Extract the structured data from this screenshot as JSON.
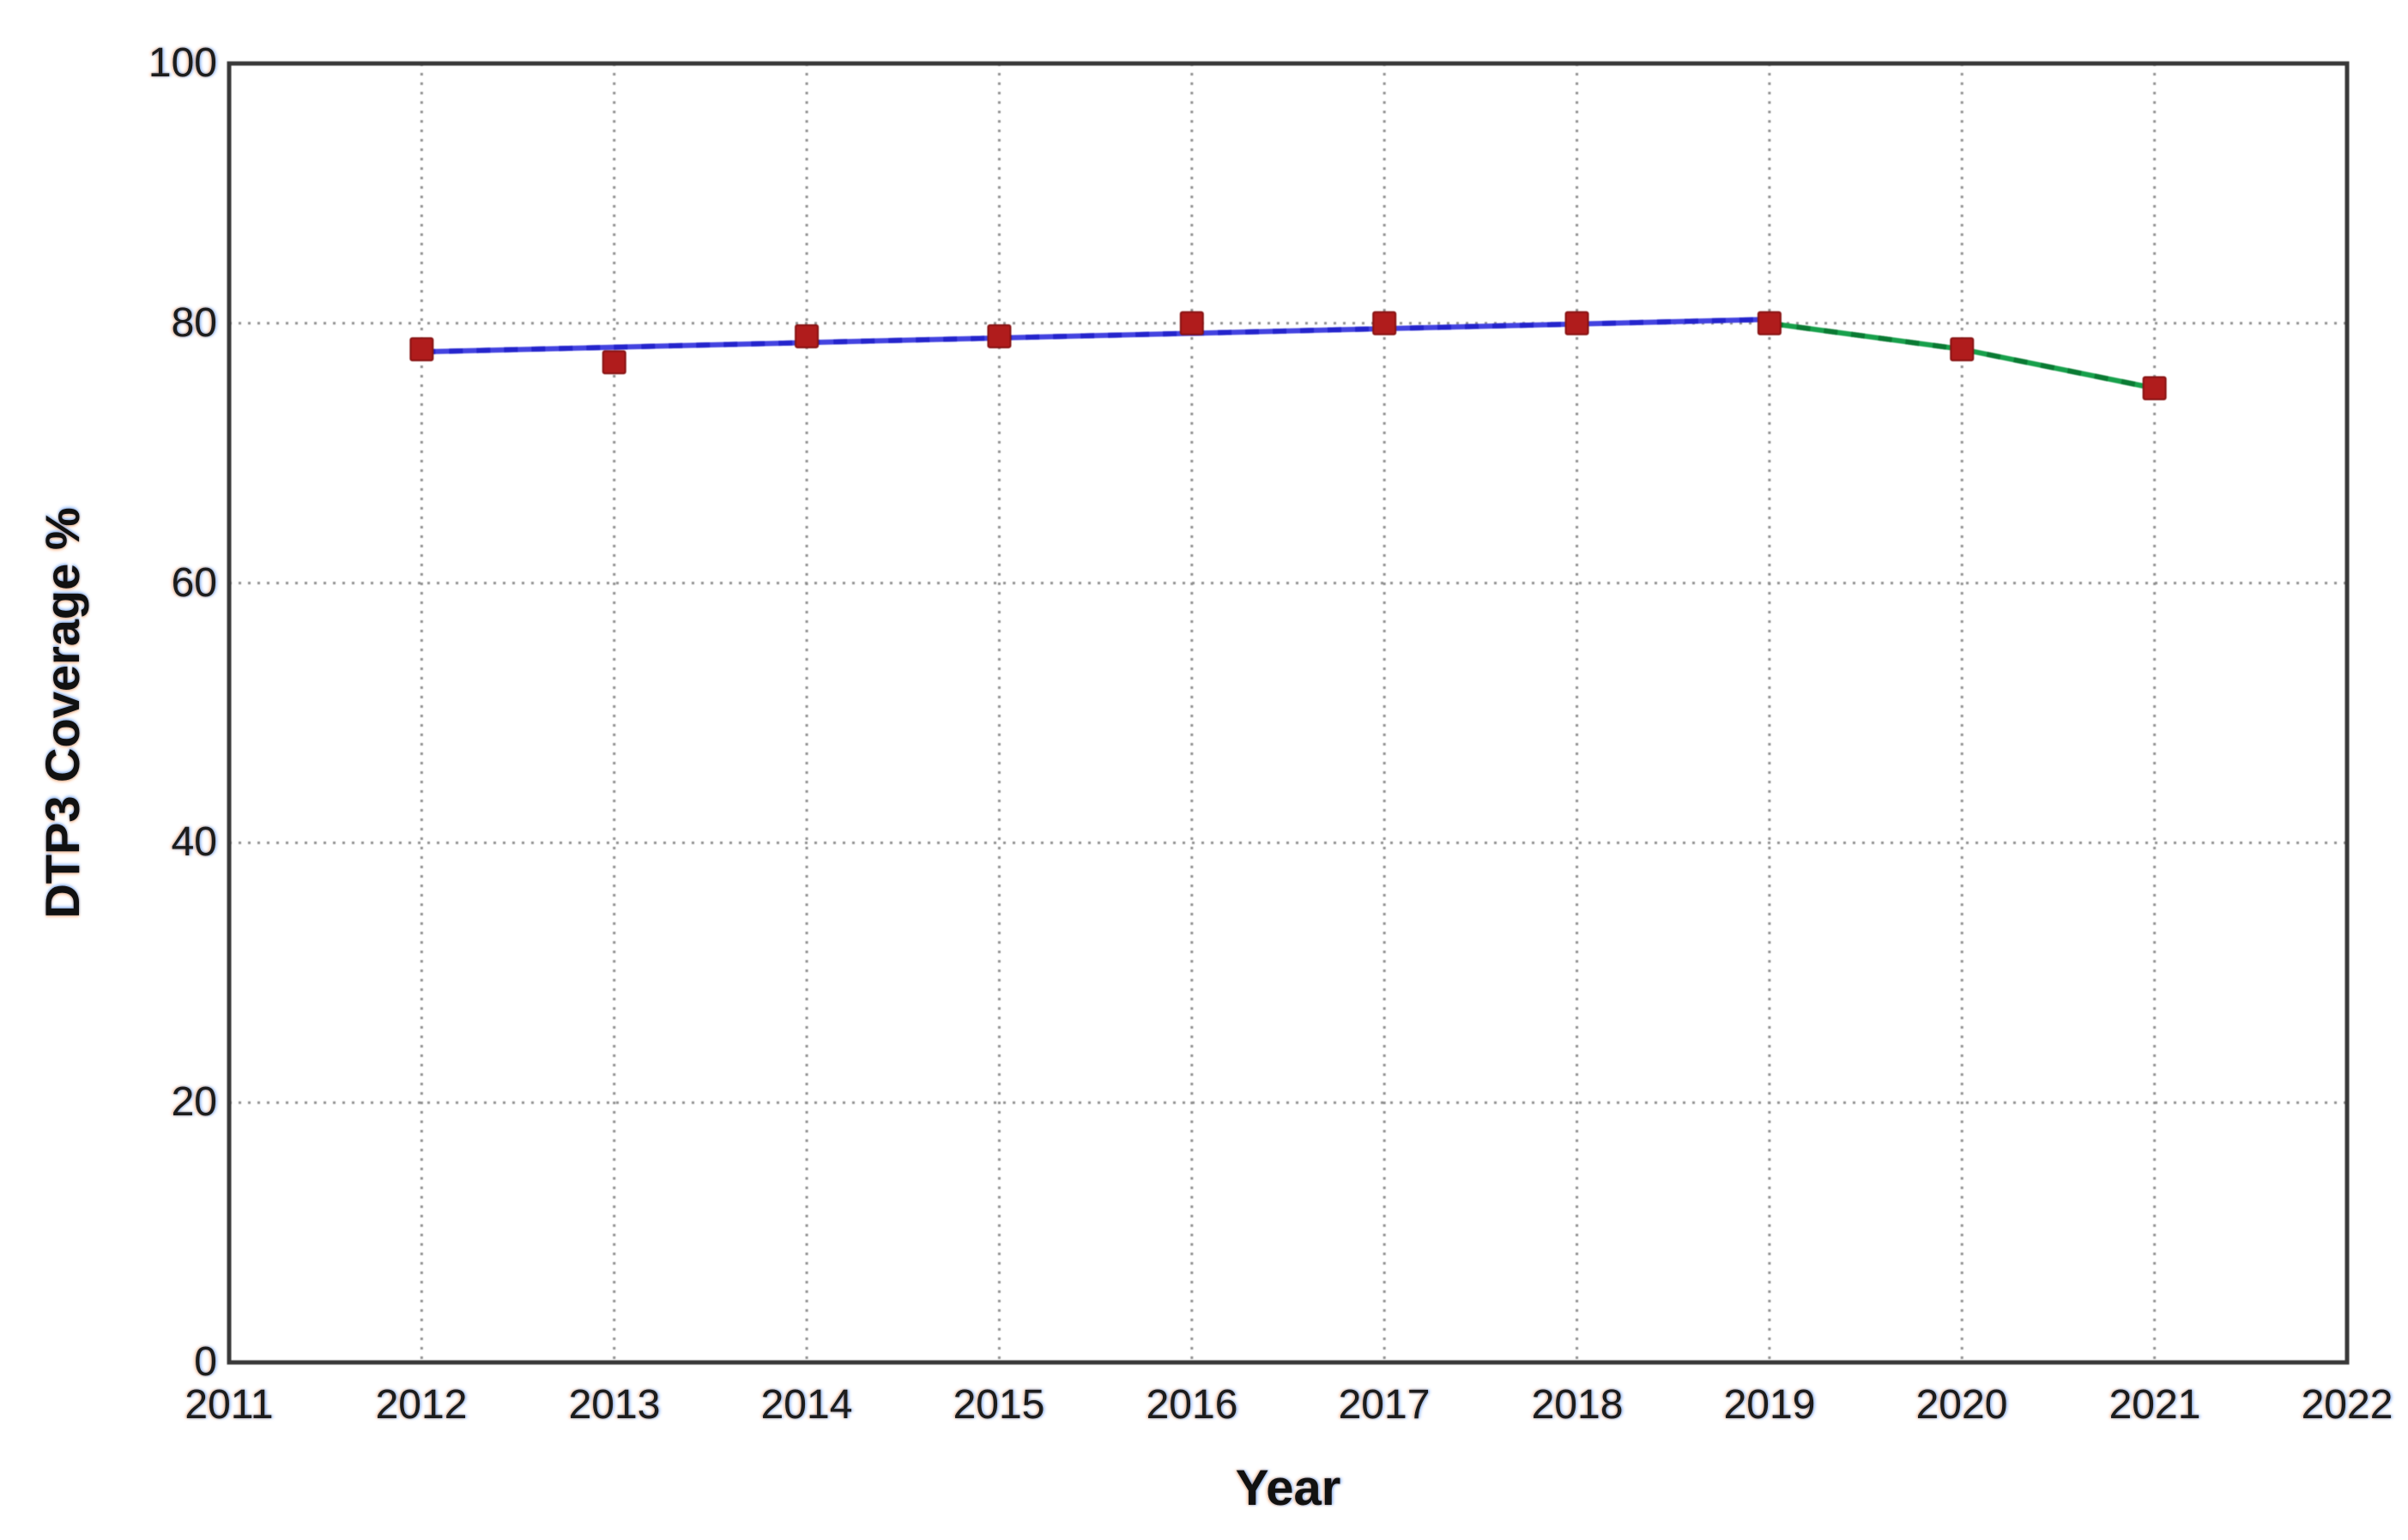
{
  "chart_data": {
    "type": "line",
    "title": "",
    "xlabel": "Year",
    "ylabel": "DTP3 Coverage %",
    "xlim": [
      2011,
      2022
    ],
    "ylim": [
      0,
      100
    ],
    "xticks": [
      2011,
      2012,
      2013,
      2014,
      2015,
      2016,
      2017,
      2018,
      2019,
      2020,
      2021,
      2022
    ],
    "yticks": [
      0,
      20,
      40,
      60,
      80,
      100
    ],
    "grid": true,
    "legend": "none",
    "categories": [
      2012,
      2013,
      2014,
      2015,
      2016,
      2017,
      2018,
      2019,
      2020,
      2021
    ],
    "series": [
      {
        "name": "observed-coverage-points",
        "kind": "points",
        "marker": "square",
        "color": "#b01c1c",
        "x": [
          2012,
          2013,
          2014,
          2015,
          2016,
          2017,
          2018,
          2019,
          2020,
          2021
        ],
        "y": [
          78,
          77,
          79,
          79,
          80,
          80,
          80,
          80,
          78,
          75
        ]
      },
      {
        "name": "trend-line-2012-2019",
        "kind": "line",
        "color": "#4343e0",
        "dash_color": "#2424cc",
        "x": [
          2012,
          2019
        ],
        "y": [
          77.8,
          80.3
        ]
      },
      {
        "name": "decline-line-2019-2021",
        "kind": "line",
        "color": "#17a04b",
        "dash_color": "#0a7a33",
        "x": [
          2019,
          2020,
          2021
        ],
        "y": [
          80,
          78,
          75
        ]
      }
    ],
    "colors": {
      "background": "#ffffff",
      "grid": "#8f8f8f",
      "frame": "#383838",
      "text": "#1c1c1c"
    }
  }
}
